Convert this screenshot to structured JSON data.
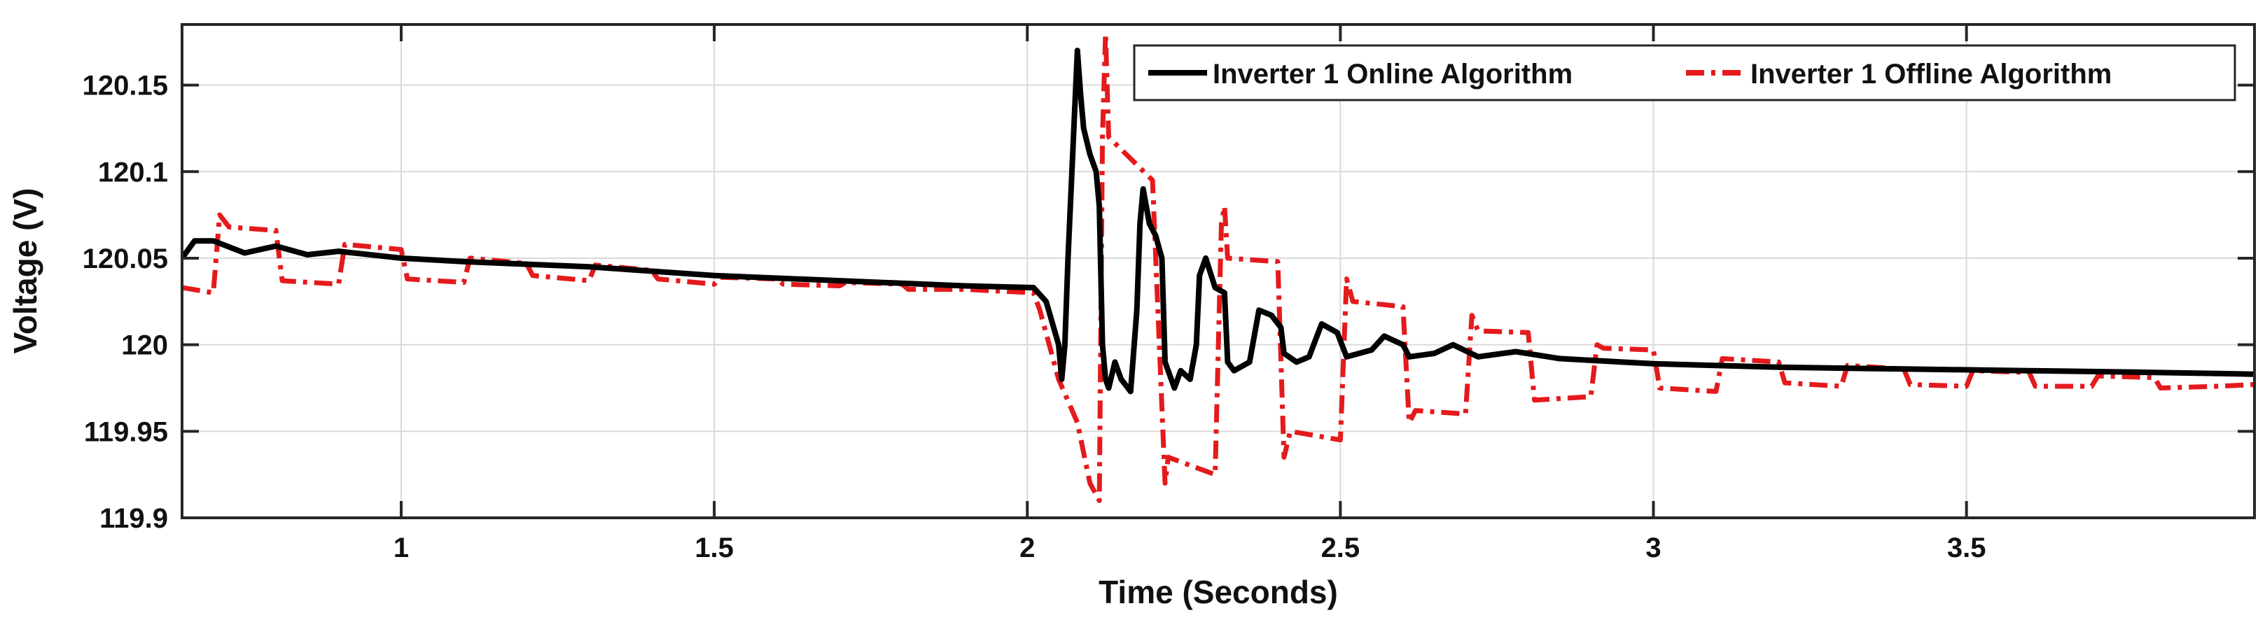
{
  "chart_data": {
    "type": "line",
    "title": "",
    "xlabel": "Time (Seconds)",
    "ylabel": "Voltage (V)",
    "xlim": [
      0.65,
      3.96
    ],
    "ylim": [
      119.9,
      120.185
    ],
    "grid": true,
    "legend_position": "top-right",
    "xticks": [
      1,
      1.5,
      2,
      2.5,
      3,
      3.5
    ],
    "xtick_labels": [
      "1",
      "1.5",
      "2",
      "2.5",
      "3",
      "3.5"
    ],
    "yticks": [
      119.9,
      119.95,
      120,
      120.05,
      120.1,
      120.15
    ],
    "ytick_labels": [
      "119.9",
      "119.95",
      "120",
      "120.05",
      "120.1",
      "120.15"
    ],
    "series": [
      {
        "name": "Inverter 1 Online Algorithm",
        "color": "#000000",
        "dash": "solid",
        "points": [
          [
            0.65,
            120.05
          ],
          [
            0.67,
            120.06
          ],
          [
            0.7,
            120.06
          ],
          [
            0.75,
            120.053
          ],
          [
            0.8,
            120.057
          ],
          [
            0.85,
            120.052
          ],
          [
            0.9,
            120.054
          ],
          [
            1.0,
            120.05
          ],
          [
            1.1,
            120.048
          ],
          [
            1.3,
            120.045
          ],
          [
            1.5,
            120.04
          ],
          [
            1.7,
            120.037
          ],
          [
            1.9,
            120.034
          ],
          [
            2.01,
            120.033
          ],
          [
            2.03,
            120.025
          ],
          [
            2.05,
            120.0
          ],
          [
            2.055,
            119.98
          ],
          [
            2.06,
            120.0
          ],
          [
            2.065,
            120.05
          ],
          [
            2.075,
            120.13
          ],
          [
            2.08,
            120.17
          ],
          [
            2.085,
            120.145
          ],
          [
            2.09,
            120.125
          ],
          [
            2.1,
            120.11
          ],
          [
            2.11,
            120.1
          ],
          [
            2.115,
            120.08
          ],
          [
            2.12,
            120.0
          ],
          [
            2.125,
            119.98
          ],
          [
            2.13,
            119.975
          ],
          [
            2.14,
            119.99
          ],
          [
            2.15,
            119.98
          ],
          [
            2.165,
            119.973
          ],
          [
            2.175,
            120.02
          ],
          [
            2.18,
            120.07
          ],
          [
            2.185,
            120.09
          ],
          [
            2.195,
            120.07
          ],
          [
            2.205,
            120.063
          ],
          [
            2.215,
            120.05
          ],
          [
            2.22,
            119.99
          ],
          [
            2.235,
            119.975
          ],
          [
            2.245,
            119.985
          ],
          [
            2.26,
            119.98
          ],
          [
            2.27,
            120.0
          ],
          [
            2.275,
            120.04
          ],
          [
            2.285,
            120.05
          ],
          [
            2.3,
            120.033
          ],
          [
            2.315,
            120.03
          ],
          [
            2.32,
            119.99
          ],
          [
            2.33,
            119.985
          ],
          [
            2.355,
            119.99
          ],
          [
            2.37,
            120.02
          ],
          [
            2.39,
            120.017
          ],
          [
            2.405,
            120.01
          ],
          [
            2.41,
            119.995
          ],
          [
            2.43,
            119.99
          ],
          [
            2.45,
            119.993
          ],
          [
            2.47,
            120.012
          ],
          [
            2.495,
            120.007
          ],
          [
            2.51,
            119.993
          ],
          [
            2.55,
            119.997
          ],
          [
            2.57,
            120.005
          ],
          [
            2.6,
            120.0
          ],
          [
            2.61,
            119.993
          ],
          [
            2.65,
            119.995
          ],
          [
            2.68,
            120.0
          ],
          [
            2.72,
            119.993
          ],
          [
            2.78,
            119.996
          ],
          [
            2.85,
            119.992
          ],
          [
            2.95,
            119.99
          ],
          [
            3.0,
            119.989
          ],
          [
            3.2,
            119.987
          ],
          [
            3.4,
            119.986
          ],
          [
            3.6,
            119.985
          ],
          [
            3.8,
            119.984
          ],
          [
            3.96,
            119.983
          ]
        ]
      },
      {
        "name": "Inverter 1 Offline Algorithm",
        "color": "#e41a1c",
        "dash": "dashdot",
        "points": [
          [
            0.65,
            120.033
          ],
          [
            0.7,
            120.03
          ],
          [
            0.71,
            120.075
          ],
          [
            0.725,
            120.068
          ],
          [
            0.8,
            120.066
          ],
          [
            0.81,
            120.037
          ],
          [
            0.9,
            120.035
          ],
          [
            0.91,
            120.058
          ],
          [
            1.0,
            120.055
          ],
          [
            1.01,
            120.038
          ],
          [
            1.1,
            120.036
          ],
          [
            1.11,
            120.05
          ],
          [
            1.2,
            120.047
          ],
          [
            1.21,
            120.04
          ],
          [
            1.3,
            120.037
          ],
          [
            1.31,
            120.046
          ],
          [
            1.4,
            120.043
          ],
          [
            1.41,
            120.038
          ],
          [
            1.5,
            120.035
          ],
          [
            1.51,
            120.039
          ],
          [
            1.6,
            120.038
          ],
          [
            1.61,
            120.035
          ],
          [
            1.7,
            120.034
          ],
          [
            1.71,
            120.036
          ],
          [
            1.8,
            120.035
          ],
          [
            1.81,
            120.032
          ],
          [
            1.9,
            120.032
          ],
          [
            2.01,
            120.03
          ],
          [
            2.02,
            120.02
          ],
          [
            2.05,
            119.98
          ],
          [
            2.08,
            119.955
          ],
          [
            2.1,
            119.92
          ],
          [
            2.115,
            119.91
          ],
          [
            2.12,
            120.12
          ],
          [
            2.125,
            120.18
          ],
          [
            2.13,
            120.12
          ],
          [
            2.2,
            120.095
          ],
          [
            2.22,
            119.92
          ],
          [
            2.225,
            119.935
          ],
          [
            2.3,
            119.925
          ],
          [
            2.31,
            120.07
          ],
          [
            2.315,
            120.08
          ],
          [
            2.32,
            120.05
          ],
          [
            2.4,
            120.048
          ],
          [
            2.41,
            119.935
          ],
          [
            2.42,
            119.95
          ],
          [
            2.5,
            119.945
          ],
          [
            2.51,
            120.038
          ],
          [
            2.52,
            120.025
          ],
          [
            2.6,
            120.022
          ],
          [
            2.61,
            119.955
          ],
          [
            2.62,
            119.962
          ],
          [
            2.7,
            119.96
          ],
          [
            2.71,
            120.017
          ],
          [
            2.72,
            120.008
          ],
          [
            2.8,
            120.007
          ],
          [
            2.81,
            119.968
          ],
          [
            2.9,
            119.97
          ],
          [
            2.91,
            120.0
          ],
          [
            2.92,
            119.998
          ],
          [
            3.0,
            119.997
          ],
          [
            3.01,
            119.975
          ],
          [
            3.1,
            119.973
          ],
          [
            3.11,
            119.992
          ],
          [
            3.2,
            119.99
          ],
          [
            3.21,
            119.978
          ],
          [
            3.3,
            119.976
          ],
          [
            3.31,
            119.988
          ],
          [
            3.4,
            119.986
          ],
          [
            3.41,
            119.977
          ],
          [
            3.5,
            119.976
          ],
          [
            3.51,
            119.985
          ],
          [
            3.6,
            119.984
          ],
          [
            3.61,
            119.976
          ],
          [
            3.7,
            119.976
          ],
          [
            3.71,
            119.982
          ],
          [
            3.8,
            119.981
          ],
          [
            3.81,
            119.975
          ],
          [
            3.9,
            119.976
          ],
          [
            3.96,
            119.977
          ]
        ]
      }
    ]
  }
}
